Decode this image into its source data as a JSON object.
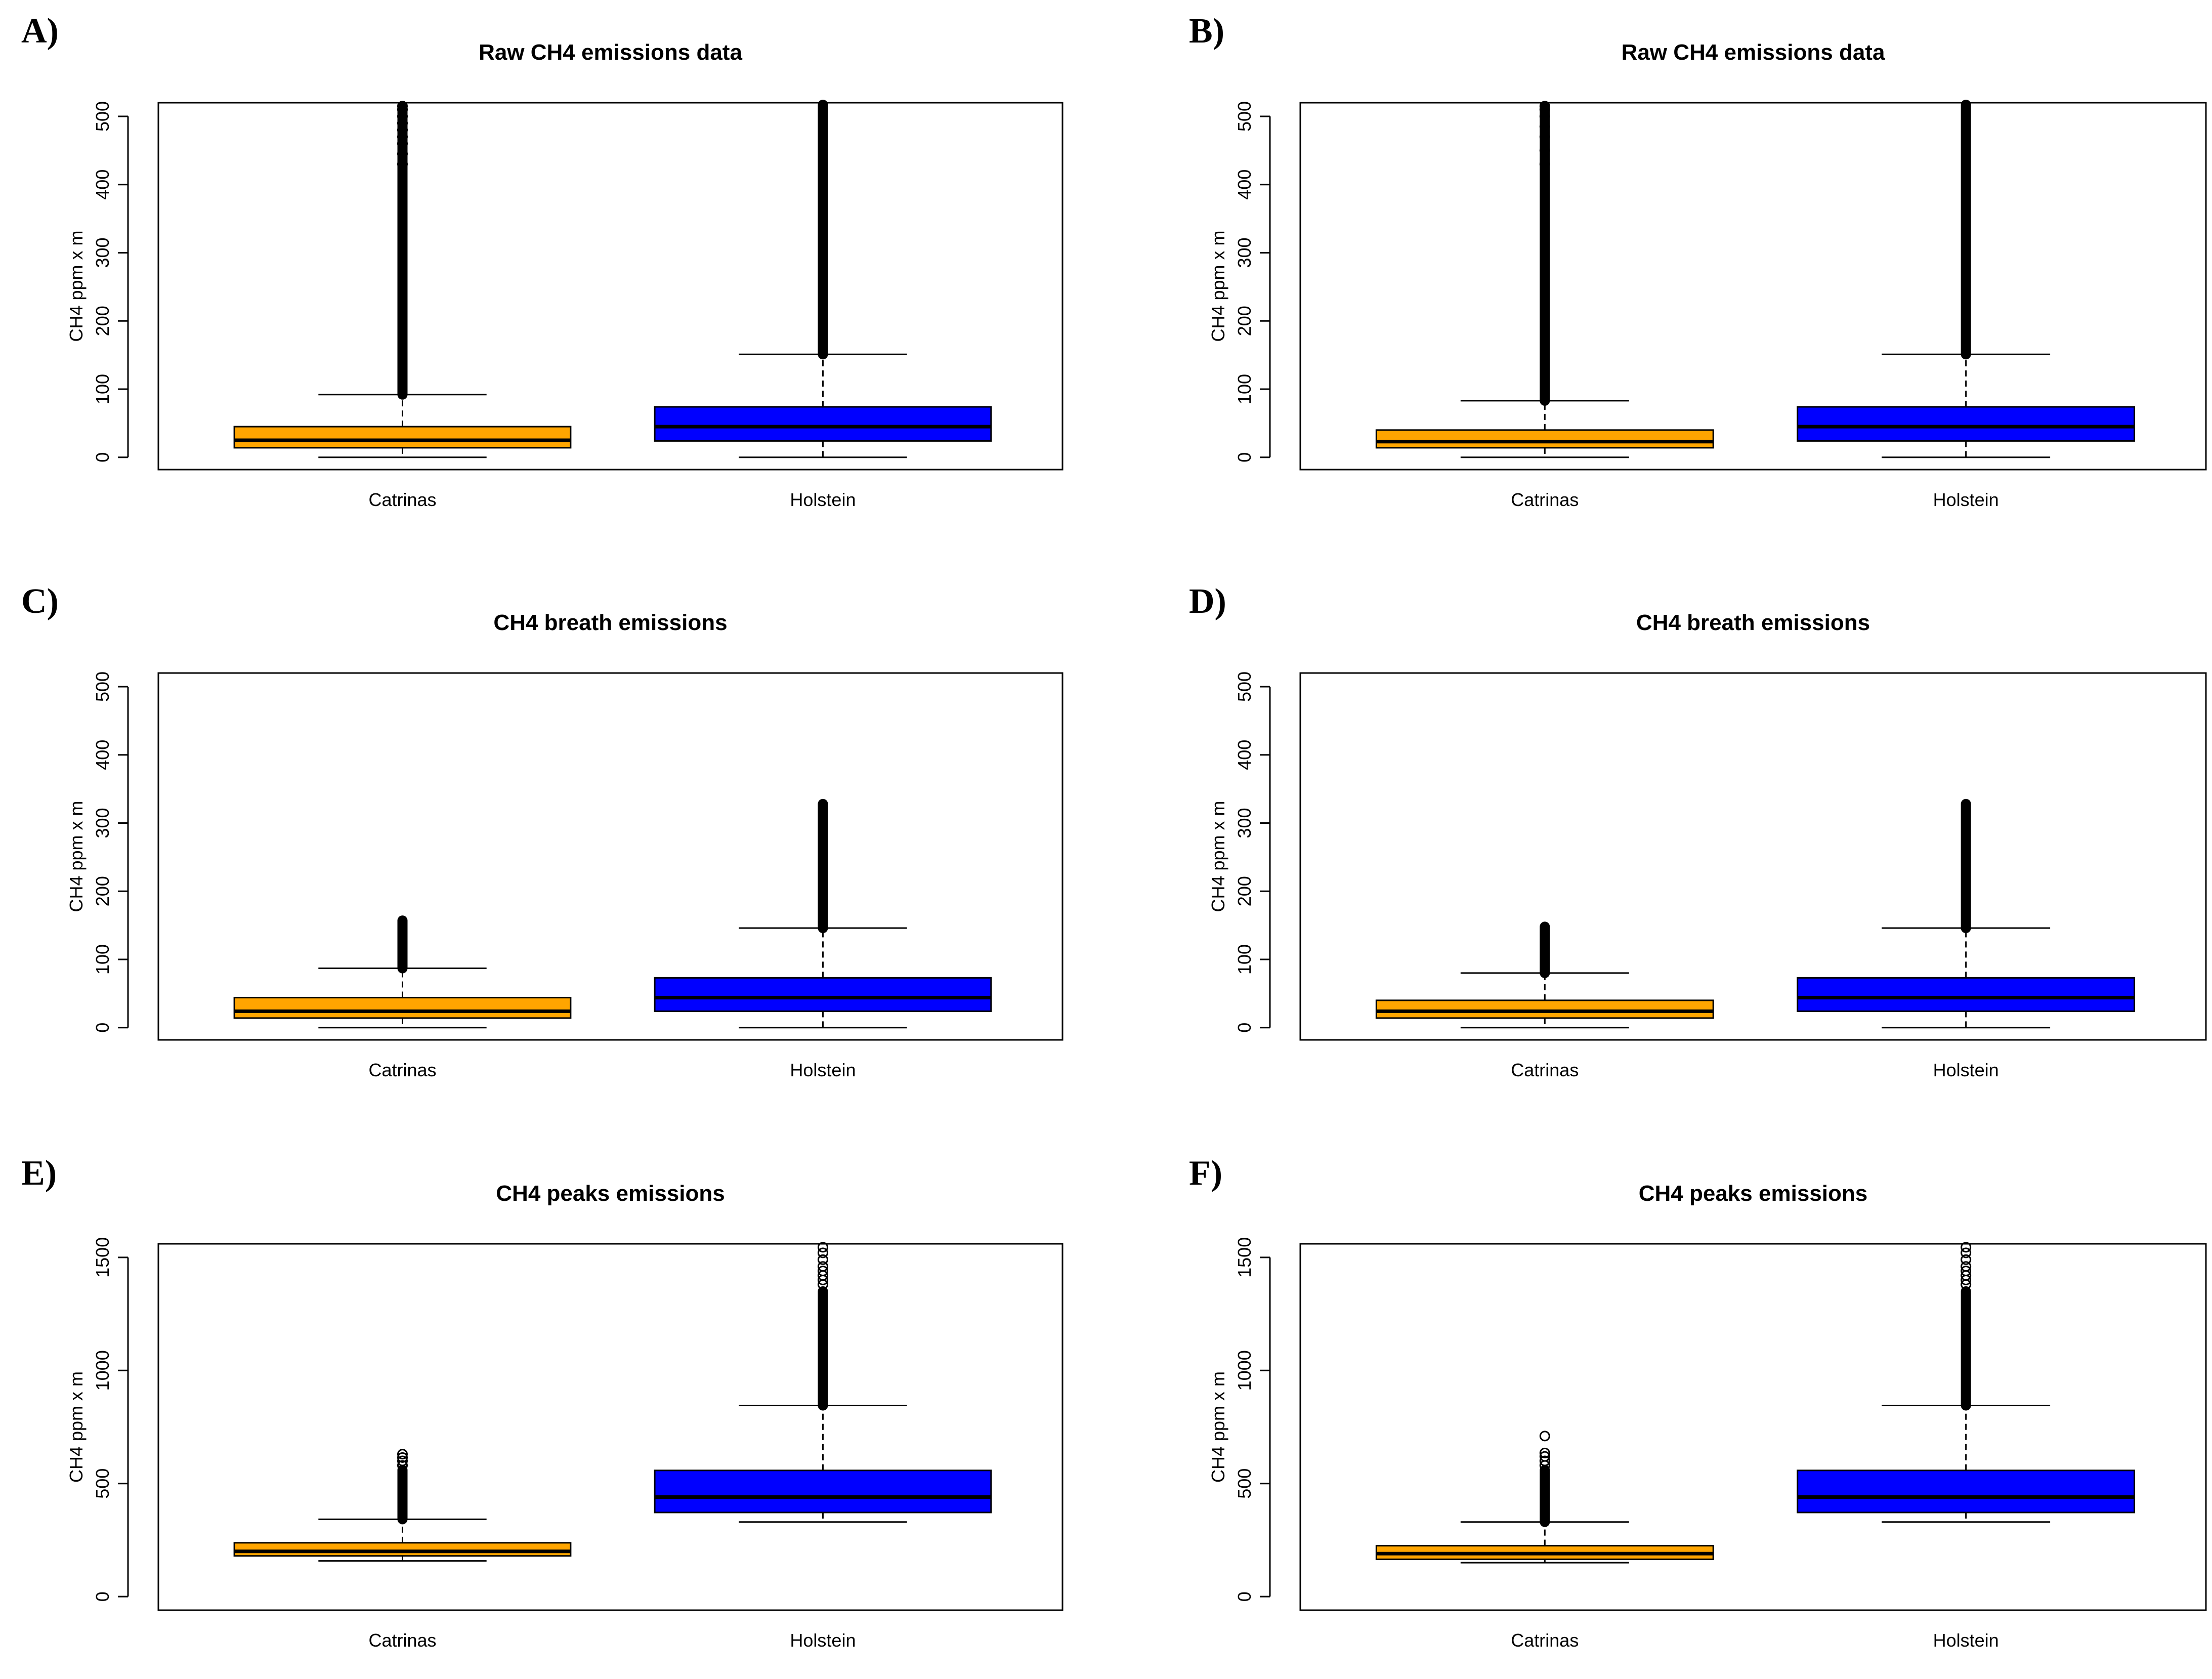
{
  "colors": {
    "catrinas": "#FFA500",
    "holstein": "#0000FF",
    "axis": "#000000"
  },
  "chart_data": [
    {
      "panel": "A)",
      "type": "boxplot",
      "title": "Raw CH4 emissions data",
      "ylabel": "CH4 ppm x m",
      "ylim": [
        -18,
        520
      ],
      "yticks": [
        0,
        100,
        200,
        300,
        400,
        500
      ],
      "yticklabels": [
        "0",
        "100",
        "200",
        "300",
        "400",
        "500"
      ],
      "categories": [
        "Catrinas",
        "Holstein"
      ],
      "series": [
        {
          "name": "Catrinas",
          "min": 0,
          "q1": 14,
          "median": 25,
          "q3": 45,
          "whisker_high": 92,
          "outliers_from": 92,
          "outliers_to": 515,
          "outlier_points": [
            430,
            445,
            460,
            470,
            480,
            490,
            500,
            510,
            515
          ]
        },
        {
          "name": "Holstein",
          "min": 0,
          "q1": 24,
          "median": 45,
          "q3": 74,
          "whisker_high": 151,
          "outliers_from": 151,
          "outliers_to": 520,
          "outlier_points": []
        }
      ]
    },
    {
      "panel": "B)",
      "type": "boxplot",
      "title": "Raw CH4 emissions data",
      "ylabel": "CH4 ppm x m",
      "ylim": [
        -18,
        520
      ],
      "yticks": [
        0,
        100,
        200,
        300,
        400,
        500
      ],
      "yticklabels": [
        "0",
        "100",
        "200",
        "300",
        "400",
        "500"
      ],
      "categories": [
        "Catrinas",
        "Holstein"
      ],
      "series": [
        {
          "name": "Catrinas",
          "min": 0,
          "q1": 14,
          "median": 23,
          "q3": 40,
          "whisker_high": 83,
          "outliers_from": 83,
          "outliers_to": 515,
          "outlier_points": [
            430,
            450,
            470,
            485,
            500,
            510,
            515
          ]
        },
        {
          "name": "Holstein",
          "min": 0,
          "q1": 24,
          "median": 45,
          "q3": 74,
          "whisker_high": 151,
          "outliers_from": 151,
          "outliers_to": 520,
          "outlier_points": []
        }
      ]
    },
    {
      "panel": "C)",
      "type": "boxplot",
      "title": "CH4 breath emissions",
      "ylabel": "CH4 ppm x m",
      "ylim": [
        -18,
        520
      ],
      "yticks": [
        0,
        100,
        200,
        300,
        400,
        500
      ],
      "yticklabels": [
        "0",
        "100",
        "200",
        "300",
        "400",
        "500"
      ],
      "categories": [
        "Catrinas",
        "Holstein"
      ],
      "series": [
        {
          "name": "Catrinas",
          "min": 0,
          "q1": 14,
          "median": 24,
          "q3": 44,
          "whisker_high": 87,
          "outliers_from": 87,
          "outliers_to": 157,
          "outlier_points": []
        },
        {
          "name": "Holstein",
          "min": 0,
          "q1": 24,
          "median": 44,
          "q3": 73,
          "whisker_high": 146,
          "outliers_from": 146,
          "outliers_to": 328,
          "outlier_points": []
        }
      ]
    },
    {
      "panel": "D)",
      "type": "boxplot",
      "title": "CH4 breath emissions",
      "ylabel": "CH4 ppm x m",
      "ylim": [
        -18,
        520
      ],
      "yticks": [
        0,
        100,
        200,
        300,
        400,
        500
      ],
      "yticklabels": [
        "0",
        "100",
        "200",
        "300",
        "400",
        "500"
      ],
      "categories": [
        "Catrinas",
        "Holstein"
      ],
      "series": [
        {
          "name": "Catrinas",
          "min": 0,
          "q1": 14,
          "median": 24,
          "q3": 40,
          "whisker_high": 80,
          "outliers_from": 80,
          "outliers_to": 148,
          "outlier_points": []
        },
        {
          "name": "Holstein",
          "min": 0,
          "q1": 24,
          "median": 44,
          "q3": 73,
          "whisker_high": 146,
          "outliers_from": 146,
          "outliers_to": 328,
          "outlier_points": []
        }
      ]
    },
    {
      "panel": "E)",
      "type": "boxplot",
      "title": "CH4 peaks emissions",
      "ylabel": "CH4 ppm x m",
      "ylim": [
        -60,
        1560
      ],
      "yticks": [
        0,
        500,
        1000,
        1500
      ],
      "yticklabels": [
        "0",
        "500",
        "1000",
        "1500"
      ],
      "categories": [
        "Catrinas",
        "Holstein"
      ],
      "series": [
        {
          "name": "Catrinas",
          "min": 158,
          "q1": 180,
          "median": 200,
          "q3": 238,
          "whisker_high": 342,
          "outliers_from": 342,
          "outliers_to": 560,
          "outlier_points": [
            580,
            600,
            615,
            630
          ]
        },
        {
          "name": "Holstein",
          "min": 330,
          "q1": 372,
          "median": 440,
          "q3": 558,
          "whisker_high": 845,
          "outliers_from": 845,
          "outliers_to": 1350,
          "outlier_points": [
            1380,
            1400,
            1420,
            1440,
            1460,
            1490,
            1520,
            1545
          ]
        }
      ]
    },
    {
      "panel": "F)",
      "type": "boxplot",
      "title": "CH4 peaks emissions",
      "ylabel": "CH4 ppm x m",
      "ylim": [
        -60,
        1560
      ],
      "yticks": [
        0,
        500,
        1000,
        1500
      ],
      "yticklabels": [
        "0",
        "500",
        "1000",
        "1500"
      ],
      "categories": [
        "Catrinas",
        "Holstein"
      ],
      "series": [
        {
          "name": "Catrinas",
          "min": 150,
          "q1": 165,
          "median": 190,
          "q3": 225,
          "whisker_high": 330,
          "outliers_from": 330,
          "outliers_to": 560,
          "outlier_points": [
            580,
            600,
            620,
            635,
            710
          ]
        },
        {
          "name": "Holstein",
          "min": 330,
          "q1": 372,
          "median": 440,
          "q3": 558,
          "whisker_high": 845,
          "outliers_from": 845,
          "outliers_to": 1350,
          "outlier_points": [
            1380,
            1400,
            1420,
            1440,
            1460,
            1490,
            1520,
            1545
          ]
        }
      ]
    }
  ]
}
